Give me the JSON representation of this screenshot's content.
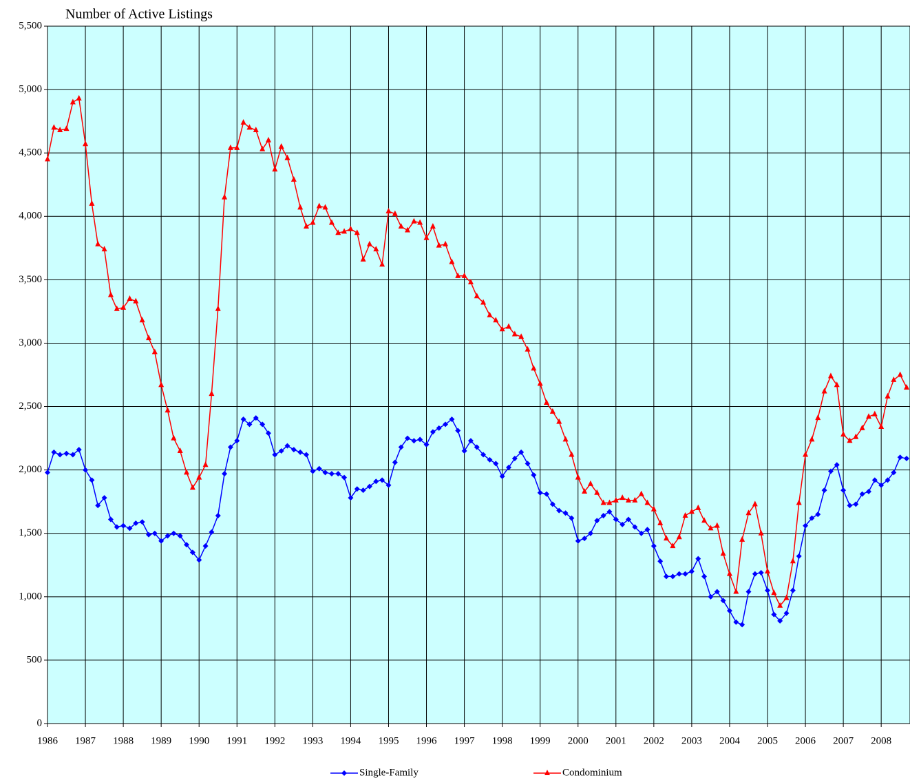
{
  "chart_data": {
    "type": "line",
    "title": "Number of Active Listings",
    "x": [
      1986,
      1986.17,
      1986.33,
      1986.5,
      1986.67,
      1986.83,
      1987,
      1987.17,
      1987.33,
      1987.5,
      1987.67,
      1987.83,
      1988,
      1988.17,
      1988.33,
      1988.5,
      1988.67,
      1988.83,
      1989,
      1989.17,
      1989.33,
      1989.5,
      1989.67,
      1989.83,
      1990,
      1990.17,
      1990.33,
      1990.5,
      1990.67,
      1990.83,
      1991,
      1991.17,
      1991.33,
      1991.5,
      1991.67,
      1991.83,
      1992,
      1992.17,
      1992.33,
      1992.5,
      1992.67,
      1992.83,
      1993,
      1993.17,
      1993.33,
      1993.5,
      1993.67,
      1993.83,
      1994,
      1994.17,
      1994.33,
      1994.5,
      1994.67,
      1994.83,
      1995,
      1995.17,
      1995.33,
      1995.5,
      1995.67,
      1995.83,
      1996,
      1996.17,
      1996.33,
      1996.5,
      1996.67,
      1996.83,
      1997,
      1997.17,
      1997.33,
      1997.5,
      1997.67,
      1997.83,
      1998,
      1998.17,
      1998.33,
      1998.5,
      1998.67,
      1998.83,
      1999,
      1999.17,
      1999.33,
      1999.5,
      1999.67,
      1999.83,
      2000,
      2000.17,
      2000.33,
      2000.5,
      2000.67,
      2000.83,
      2001,
      2001.17,
      2001.33,
      2001.5,
      2001.67,
      2001.83,
      2002,
      2002.17,
      2002.33,
      2002.5,
      2002.67,
      2002.83,
      2003,
      2003.17,
      2003.33,
      2003.5,
      2003.67,
      2003.83,
      2004,
      2004.17,
      2004.33,
      2004.5,
      2004.67,
      2004.83,
      2005,
      2005.17,
      2005.33,
      2005.5,
      2005.67,
      2005.83,
      2006,
      2006.17,
      2006.33,
      2006.5,
      2006.67,
      2006.83,
      2007,
      2007.17,
      2007.33,
      2007.5,
      2007.67,
      2007.83,
      2008,
      2008.17,
      2008.33,
      2008.5,
      2008.67
    ],
    "series": [
      {
        "name": "Single-Family",
        "color": "#0000ff",
        "marker": "diamond",
        "values": [
          1980,
          2140,
          2120,
          2130,
          2120,
          2160,
          2000,
          1920,
          1720,
          1780,
          1610,
          1550,
          1560,
          1540,
          1580,
          1590,
          1490,
          1500,
          1440,
          1480,
          1500,
          1480,
          1410,
          1350,
          1290,
          1400,
          1510,
          1640,
          1970,
          2180,
          2230,
          2400,
          2360,
          2410,
          2360,
          2290,
          2120,
          2150,
          2190,
          2160,
          2140,
          2120,
          1990,
          2010,
          1980,
          1970,
          1970,
          1940,
          1780,
          1850,
          1840,
          1870,
          1910,
          1920,
          1880,
          2060,
          2180,
          2250,
          2230,
          2240,
          2200,
          2300,
          2330,
          2360,
          2400,
          2310,
          2150,
          2230,
          2180,
          2120,
          2080,
          2050,
          1950,
          2020,
          2090,
          2140,
          2050,
          1960,
          1820,
          1810,
          1730,
          1680,
          1660,
          1620,
          1440,
          1460,
          1500,
          1600,
          1640,
          1670,
          1610,
          1570,
          1610,
          1550,
          1500,
          1530,
          1400,
          1280,
          1160,
          1160,
          1180,
          1180,
          1200,
          1300,
          1160,
          1000,
          1040,
          970,
          890,
          800,
          780,
          1040,
          1180,
          1190,
          1050,
          860,
          810,
          870,
          1050,
          1320,
          1560,
          1620,
          1650,
          1840,
          1990,
          2040,
          1840,
          1720,
          1730,
          1810,
          1830,
          1920,
          1880,
          1920,
          1980,
          2100,
          2090
        ]
      },
      {
        "name": "Condominium",
        "color": "#ff0000",
        "marker": "triangle",
        "values": [
          4450,
          4700,
          4680,
          4690,
          4900,
          4930,
          4570,
          4100,
          3780,
          3740,
          3380,
          3270,
          3280,
          3350,
          3330,
          3180,
          3040,
          2930,
          2670,
          2470,
          2250,
          2150,
          1980,
          1860,
          1940,
          2040,
          2600,
          3270,
          4150,
          4540,
          4540,
          4740,
          4700,
          4680,
          4530,
          4600,
          4370,
          4550,
          4460,
          4290,
          4070,
          3920,
          3950,
          4080,
          4070,
          3950,
          3870,
          3880,
          3900,
          3870,
          3660,
          3780,
          3740,
          3620,
          4040,
          4020,
          3920,
          3890,
          3960,
          3950,
          3830,
          3920,
          3770,
          3780,
          3640,
          3530,
          3530,
          3480,
          3370,
          3320,
          3220,
          3180,
          3110,
          3130,
          3070,
          3050,
          2950,
          2800,
          2680,
          2530,
          2460,
          2380,
          2240,
          2120,
          1940,
          1830,
          1890,
          1820,
          1740,
          1740,
          1760,
          1780,
          1760,
          1760,
          1810,
          1740,
          1690,
          1580,
          1460,
          1400,
          1470,
          1640,
          1670,
          1700,
          1600,
          1540,
          1560,
          1340,
          1180,
          1040,
          1450,
          1660,
          1730,
          1500,
          1200,
          1030,
          930,
          990,
          1280,
          1740,
          2120,
          2240,
          2410,
          2620,
          2740,
          2670,
          2280,
          2230,
          2260,
          2330,
          2420,
          2440,
          2340,
          2580,
          2710,
          2750,
          2650
        ]
      }
    ],
    "xlim": [
      1986,
      2008.76
    ],
    "xticks": [
      1986,
      1987,
      1988,
      1989,
      1990,
      1991,
      1992,
      1993,
      1994,
      1995,
      1996,
      1997,
      1998,
      1999,
      2000,
      2001,
      2002,
      2003,
      2004,
      2005,
      2006,
      2007,
      2008
    ],
    "ylim": [
      0,
      5500
    ],
    "yticks": [
      0,
      500,
      {
        "value": 1000,
        "label": "1,000"
      },
      {
        "value": 1500,
        "label": "1,500"
      },
      {
        "value": 2000,
        "label": "2,000"
      },
      {
        "value": 2500,
        "label": "2,500"
      },
      {
        "value": 3000,
        "label": "3,000"
      },
      {
        "value": 3500,
        "label": "3,500"
      },
      {
        "value": 4000,
        "label": "4,000"
      },
      {
        "value": 4500,
        "label": "4,500"
      },
      {
        "value": 5000,
        "label": "5,000"
      },
      {
        "value": 5500,
        "label": "5,500"
      }
    ],
    "grid": true,
    "background": "#ccffff",
    "legend": "bottom"
  }
}
